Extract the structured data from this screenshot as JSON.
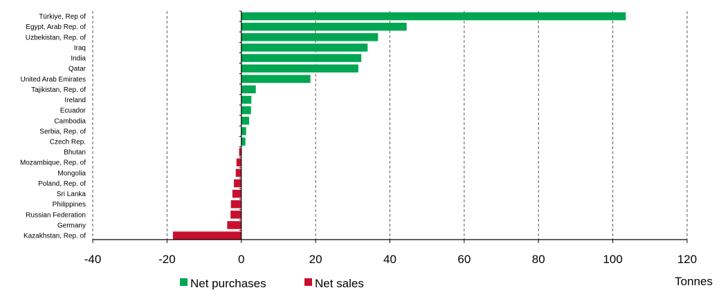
{
  "chart_data": {
    "type": "bar",
    "orientation": "horizontal",
    "categories": [
      "Türkiye, Rep of",
      "Egypt, Arab Rep. of",
      "Uzbekistan, Rep. of",
      "Iraq",
      "India",
      "Qatar",
      "United Arab Emirates",
      "Tajikistan, Rep. of",
      "Ireland",
      "Ecuador",
      "Cambodia",
      "Serbia, Rep. of",
      "Czech Rep.",
      "Bhutan",
      "Mozambique, Rep. of",
      "Mongolia",
      "Poland, Rep. of",
      "Sri Lanka",
      "Philippines",
      "Russian Federation",
      "Germany",
      "Kazakhstan, Rep. of"
    ],
    "values": [
      103.5,
      44.5,
      36.8,
      34.0,
      32.3,
      31.5,
      18.6,
      3.9,
      2.7,
      2.6,
      2.1,
      1.3,
      1.1,
      -0.6,
      -1.3,
      -1.5,
      -2.0,
      -2.4,
      -2.8,
      -2.9,
      -3.8,
      -18.4
    ],
    "series": [
      {
        "name": "Net purchases",
        "color": "#00a651"
      },
      {
        "name": "Net sales",
        "color": "#c8102e"
      }
    ],
    "xlim": [
      -40,
      120
    ],
    "xticks": [
      -40,
      -20,
      0,
      20,
      40,
      60,
      80,
      100,
      120
    ],
    "xlabel": "Tonnes",
    "grid": "vertical dashed",
    "legend_position": "bottom-left"
  }
}
